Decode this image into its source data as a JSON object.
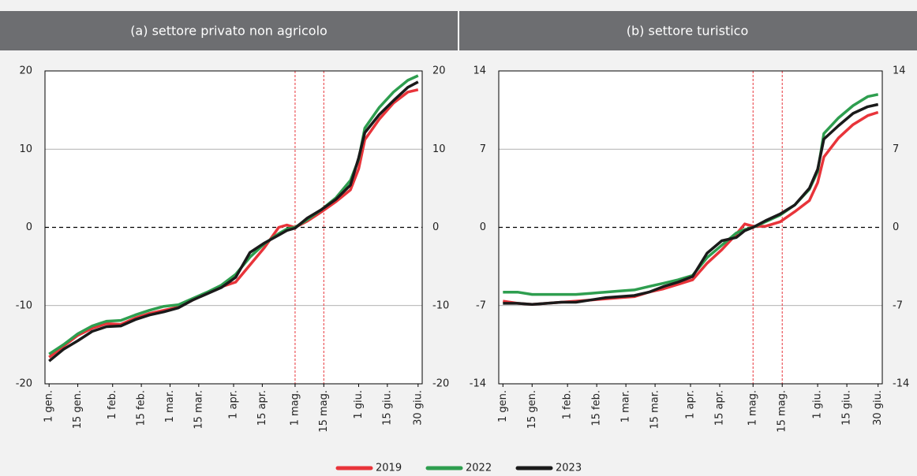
{
  "chart_data": [
    {
      "type": "line",
      "title": "(a) settore privato non agricolo",
      "x": [
        1,
        8,
        15,
        22,
        29,
        36,
        43,
        50,
        57,
        64,
        71,
        78,
        85,
        92,
        99,
        106,
        113,
        117,
        121,
        127,
        134,
        141,
        148,
        152,
        155,
        162,
        169,
        176,
        181
      ],
      "series": [
        {
          "name": "2019",
          "color": "#e8343a",
          "values": [
            -16.6,
            -15.2,
            -13.8,
            -12.9,
            -12.3,
            -12.4,
            -11.6,
            -11.0,
            -10.6,
            -10.2,
            -9.3,
            -8.4,
            -7.6,
            -7.0,
            -4.8,
            -2.6,
            0.0,
            0.3,
            0.0,
            0.8,
            2.0,
            3.3,
            4.8,
            7.5,
            11.2,
            13.8,
            15.9,
            17.3,
            17.6
          ]
        },
        {
          "name": "2022",
          "color": "#2e9e4f",
          "values": [
            -16.2,
            -15.0,
            -13.6,
            -12.6,
            -12.0,
            -11.9,
            -11.2,
            -10.6,
            -10.1,
            -9.9,
            -9.1,
            -8.3,
            -7.4,
            -6.0,
            -3.8,
            -2.1,
            -0.8,
            -0.2,
            0,
            1.0,
            2.3,
            3.8,
            6.0,
            8.7,
            12.7,
            15.3,
            17.3,
            18.8,
            19.4
          ]
        },
        {
          "name": "2023",
          "color": "#1a1a1a",
          "values": [
            -17.1,
            -15.6,
            -14.5,
            -13.3,
            -12.7,
            -12.6,
            -11.8,
            -11.2,
            -10.8,
            -10.3,
            -9.3,
            -8.5,
            -7.7,
            -6.4,
            -3.2,
            -2.0,
            -1.0,
            -0.4,
            -0.1,
            1.2,
            2.3,
            3.6,
            5.4,
            8.9,
            12.1,
            14.4,
            16.2,
            17.9,
            18.6
          ]
        }
      ],
      "xlim": [
        -1,
        183
      ],
      "xticks": [
        {
          "value": 1,
          "label": "1 gen."
        },
        {
          "value": 15,
          "label": "15 gen."
        },
        {
          "value": 32,
          "label": "1 feb."
        },
        {
          "value": 46,
          "label": "15 feb."
        },
        {
          "value": 60,
          "label": "1 mar."
        },
        {
          "value": 74,
          "label": "15 mar."
        },
        {
          "value": 91,
          "label": "1 apr."
        },
        {
          "value": 105,
          "label": "15 apr."
        },
        {
          "value": 121,
          "label": "1 mag."
        },
        {
          "value": 135,
          "label": "15 mag."
        },
        {
          "value": 152,
          "label": "1 giu."
        },
        {
          "value": 166,
          "label": "15 giu."
        },
        {
          "value": 181,
          "label": "30 giu."
        }
      ],
      "ylim": [
        -20,
        20
      ],
      "yticks": [
        -20,
        -10,
        0,
        10,
        20
      ],
      "y2lim": [
        -20,
        20
      ],
      "y2ticks": [
        -20,
        -10,
        0,
        10,
        20
      ],
      "vlines": [
        121,
        135
      ],
      "vline_color": "#e8343a",
      "grid": true
    },
    {
      "type": "line",
      "title": "(b) settore turistico",
      "x": [
        1,
        8,
        15,
        22,
        29,
        36,
        43,
        50,
        57,
        64,
        71,
        78,
        85,
        92,
        99,
        106,
        113,
        117,
        121,
        127,
        134,
        141,
        148,
        152,
        155,
        162,
        169,
        176,
        181
      ],
      "series": [
        {
          "name": "2019",
          "color": "#e8343a",
          "values": [
            -6.6,
            -6.8,
            -6.9,
            -6.8,
            -6.7,
            -6.6,
            -6.5,
            -6.4,
            -6.3,
            -6.2,
            -5.8,
            -5.5,
            -5.1,
            -4.7,
            -3.2,
            -2.0,
            -0.6,
            0.3,
            0.1,
            0.1,
            0.5,
            1.4,
            2.4,
            4.0,
            6.3,
            8.0,
            9.2,
            10.0,
            10.3
          ]
        },
        {
          "name": "2022",
          "color": "#2e9e4f",
          "values": [
            -5.8,
            -5.8,
            -6.0,
            -6.0,
            -6.0,
            -6.0,
            -5.9,
            -5.8,
            -5.7,
            -5.6,
            -5.3,
            -5.0,
            -4.7,
            -4.3,
            -2.7,
            -1.6,
            -0.5,
            -0.2,
            0,
            0.5,
            1.1,
            2.0,
            3.4,
            5.0,
            8.4,
            9.8,
            10.9,
            11.7,
            11.9
          ]
        },
        {
          "name": "2023",
          "color": "#1a1a1a",
          "values": [
            -6.8,
            -6.8,
            -6.9,
            -6.8,
            -6.7,
            -6.7,
            -6.5,
            -6.3,
            -6.2,
            -6.1,
            -5.8,
            -5.3,
            -4.9,
            -4.4,
            -2.3,
            -1.2,
            -0.9,
            -0.3,
            0,
            0.6,
            1.2,
            2.0,
            3.5,
            5.2,
            7.9,
            9.1,
            10.2,
            10.8,
            11.0
          ]
        }
      ],
      "xlim": [
        -1,
        183
      ],
      "xticks": [
        {
          "value": 1,
          "label": "1 gen."
        },
        {
          "value": 15,
          "label": "15 gen."
        },
        {
          "value": 32,
          "label": "1 feb."
        },
        {
          "value": 46,
          "label": "15 feb."
        },
        {
          "value": 60,
          "label": "1 mar."
        },
        {
          "value": 74,
          "label": "15 mar."
        },
        {
          "value": 91,
          "label": "1 apr."
        },
        {
          "value": 105,
          "label": "15 apr."
        },
        {
          "value": 121,
          "label": "1 mag."
        },
        {
          "value": 135,
          "label": "15 mag."
        },
        {
          "value": 152,
          "label": "1 giu."
        },
        {
          "value": 166,
          "label": "15 giu."
        },
        {
          "value": 181,
          "label": "30 giu."
        }
      ],
      "ylim": [
        -14,
        14
      ],
      "yticks": [
        -14,
        -7,
        0,
        7,
        14
      ],
      "y2lim": [
        -14,
        14
      ],
      "y2ticks": [
        -14,
        -7,
        0,
        7,
        14
      ],
      "vlines": [
        121,
        135
      ],
      "vline_color": "#e8343a",
      "grid": true
    }
  ]
}
